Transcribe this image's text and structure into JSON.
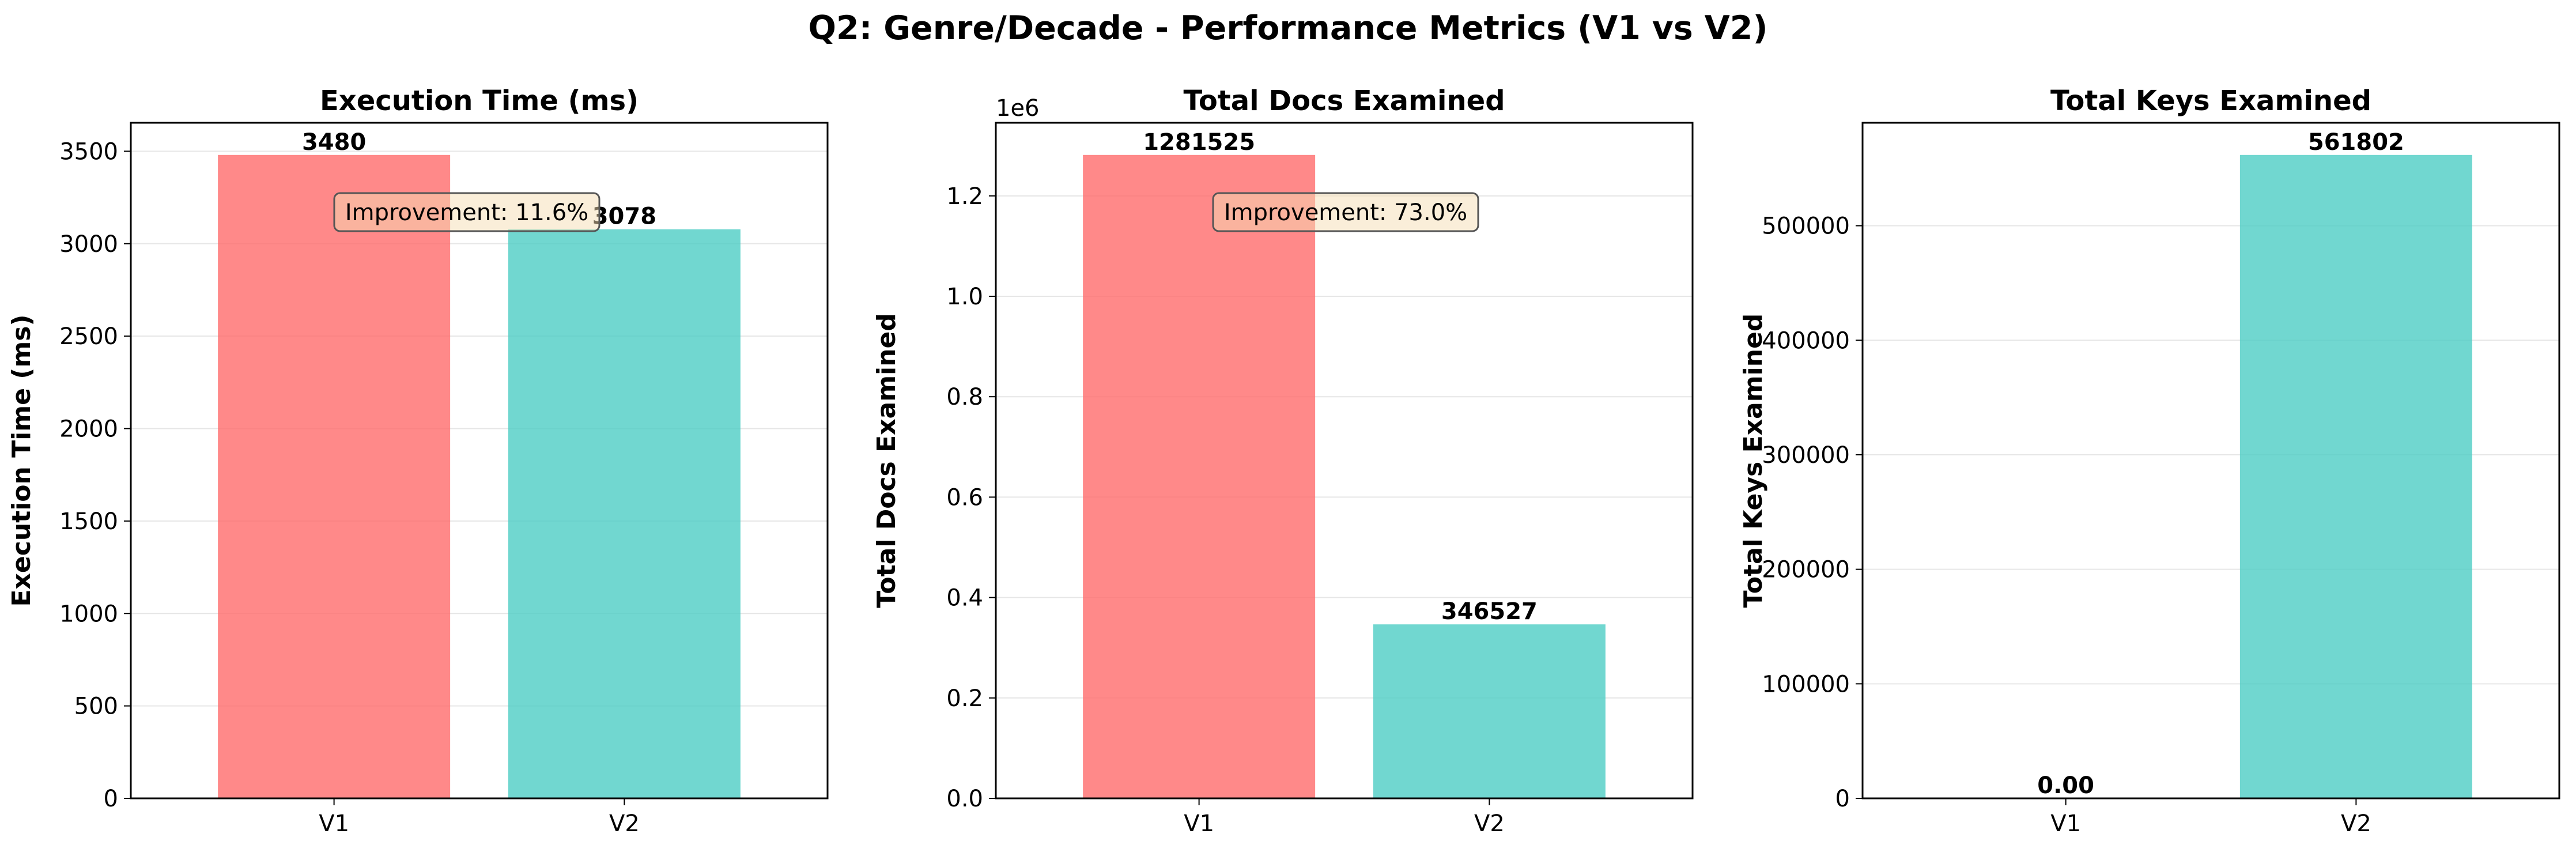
{
  "figure": {
    "suptitle": "Q2: Genre/Decade - Performance Metrics (V1 vs V2)"
  },
  "colors": {
    "v1": "#FF6B6B",
    "v2": "#4ECDC4",
    "annotation_bg": "#F5DEB3",
    "grid": "#E6E6E6"
  },
  "chart_data": [
    {
      "type": "bar",
      "title": "Execution Time (ms)",
      "ylabel": "Execution Time (ms)",
      "categories": [
        "V1",
        "V2"
      ],
      "values": [
        3480,
        3078
      ],
      "value_labels": [
        "3480",
        "3078"
      ],
      "ylim": [
        0,
        3654
      ],
      "yticks": [
        0,
        500,
        1000,
        1500,
        2000,
        2500,
        3000,
        3500
      ],
      "ytick_labels": [
        "0",
        "500",
        "1000",
        "1500",
        "2000",
        "2500",
        "3000",
        "3500"
      ],
      "annotation": "Improvement: 11.6%",
      "grid": true
    },
    {
      "type": "bar",
      "title": "Total Docs Examined",
      "ylabel": "Total Docs Examined",
      "categories": [
        "V1",
        "V2"
      ],
      "values": [
        1281525,
        346527
      ],
      "value_labels": [
        "1281525",
        "346527"
      ],
      "ylim": [
        0,
        1345601
      ],
      "yticks": [
        0,
        200000,
        400000,
        600000,
        800000,
        1000000,
        1200000
      ],
      "ytick_labels": [
        "0.0",
        "0.2",
        "0.4",
        "0.6",
        "0.8",
        "1.0",
        "1.2"
      ],
      "offset_label": "1e6",
      "annotation": "Improvement: 73.0%",
      "grid": true
    },
    {
      "type": "bar",
      "title": "Total Keys Examined",
      "ylabel": "Total Keys Examined",
      "categories": [
        "V1",
        "V2"
      ],
      "values": [
        0,
        561802
      ],
      "value_labels": [
        "0.00",
        "561802"
      ],
      "ylim": [
        0,
        589892
      ],
      "yticks": [
        0,
        100000,
        200000,
        300000,
        400000,
        500000
      ],
      "ytick_labels": [
        "0",
        "100000",
        "200000",
        "300000",
        "400000",
        "500000"
      ],
      "grid": true
    }
  ]
}
